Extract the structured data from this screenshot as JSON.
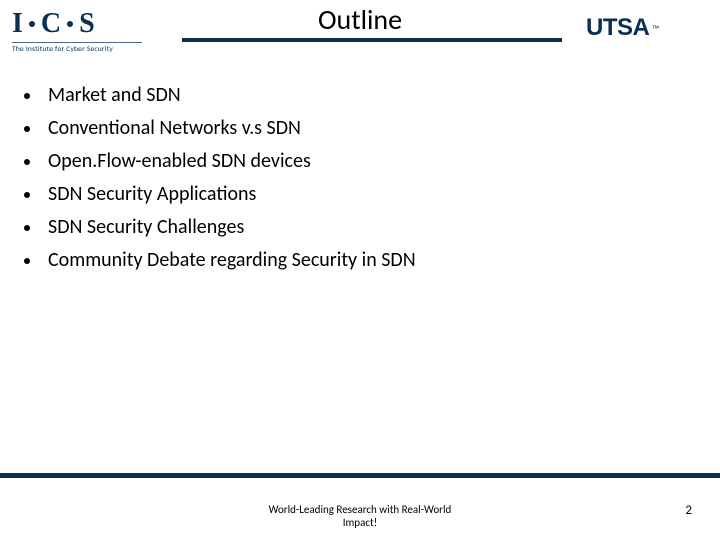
{
  "header": {
    "title": "Outline",
    "logo_left": {
      "letters": [
        "I",
        "C",
        "S"
      ],
      "subtitle": "The Institute for Cyber Security"
    },
    "logo_right": {
      "text": "UTSA",
      "trademark": "™"
    },
    "underline_color": "#0b2e52"
  },
  "bullets": [
    "Market and SDN",
    "Conventional Networks v.s SDN",
    "Open.Flow-enabled SDN devices",
    "SDN Security Applications",
    "SDN Security Challenges",
    "Community Debate regarding Security in SDN"
  ],
  "footer": {
    "line1": "World-Leading Research with Real-World",
    "line2": "Impact!",
    "page_number": "2"
  },
  "colors": {
    "brand_navy": "#0b2e52",
    "text": "#000000",
    "background": "#ffffff"
  },
  "typography": {
    "title_fontsize_pt": 28,
    "bullet_fontsize_pt": 20,
    "footer_fontsize_pt": 11
  }
}
